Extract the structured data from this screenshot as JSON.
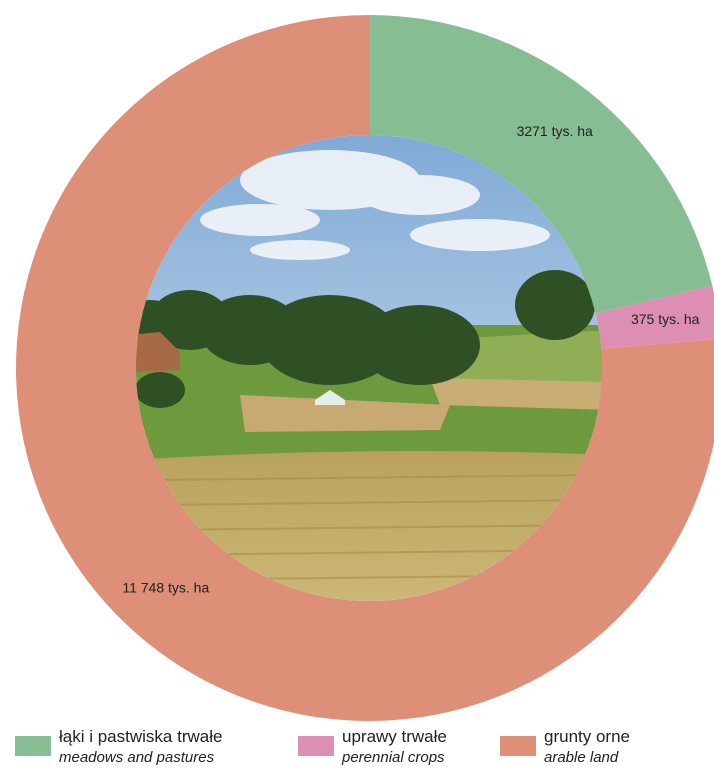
{
  "chart_data": {
    "type": "donut",
    "categories": [
      "łąki i pastwiska trwałe",
      "uprawy trwałe",
      "grunty orne"
    ],
    "categories_en": [
      "meadows and pastures",
      "perennial crops",
      "arable land"
    ],
    "values": [
      3271,
      375,
      11748
    ],
    "value_labels": [
      "3271 tys. ha",
      "375 tys. ha",
      "11 748 tys. ha"
    ],
    "colors": [
      "#86bd92",
      "#dd8fb3",
      "#de8f78"
    ]
  }
}
